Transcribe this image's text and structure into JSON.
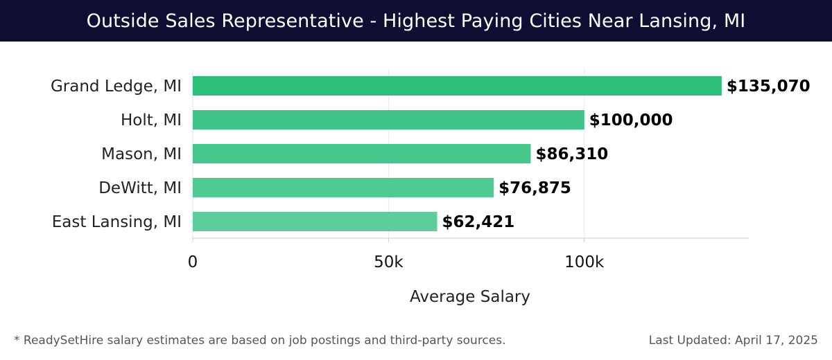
{
  "header": {
    "title": "Outside Sales Representative - Highest Paying Cities Near Lansing, MI"
  },
  "chart_data": {
    "type": "bar",
    "orientation": "horizontal",
    "title": "Outside Sales Representative - Highest Paying Cities Near Lansing, MI",
    "categories": [
      "Grand Ledge, MI",
      "Holt, MI",
      "Mason, MI",
      "DeWitt, MI",
      "East Lansing, MI"
    ],
    "values": [
      135070,
      100000,
      86310,
      76875,
      62421
    ],
    "value_labels": [
      "$135,070",
      "$100,000",
      "$86,310",
      "$76,875",
      "$62,421"
    ],
    "xlabel": "Average Salary",
    "ylabel": "",
    "xlim": [
      0,
      142000
    ],
    "xticks": [
      0,
      50000,
      100000
    ],
    "xtick_labels": [
      "0",
      "50k",
      "100k"
    ],
    "grid": true,
    "colors": [
      "#2bbf79",
      "#3ec587",
      "#46c88c",
      "#4fcb92",
      "#5bce9b"
    ]
  },
  "footer": {
    "note": "* ReadySetHire salary estimates are based on job postings and third-party sources.",
    "updated": "Last Updated: April 17, 2025"
  }
}
